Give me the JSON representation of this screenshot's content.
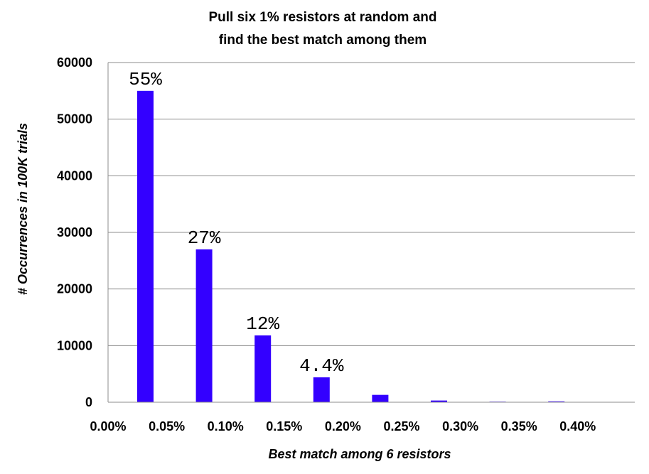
{
  "chart_data": {
    "type": "bar",
    "title": [
      "Pull six 1% resistors at random and",
      "find the best match among them"
    ],
    "xlabel": "Best match among 6 resistors",
    "ylabel": "# Occurrences in 100K trials",
    "ylim": [
      0,
      60000
    ],
    "yticks": [
      "0",
      "10000",
      "20000",
      "30000",
      "40000",
      "50000",
      "60000"
    ],
    "xticks": [
      "0.00%",
      "0.05%",
      "0.10%",
      "0.15%",
      "0.20%",
      "0.25%",
      "0.30%",
      "0.35%",
      "0.40%"
    ],
    "grid": "horizontal",
    "legend": "none",
    "bar_color": "#3300ff",
    "series": [
      {
        "values": [
          55000,
          27000,
          11800,
          4400,
          1300,
          300,
          100,
          150
        ]
      }
    ],
    "data_labels": [
      "55%",
      "27%",
      "12%",
      "4.4%",
      "",
      "",
      "",
      ""
    ]
  }
}
